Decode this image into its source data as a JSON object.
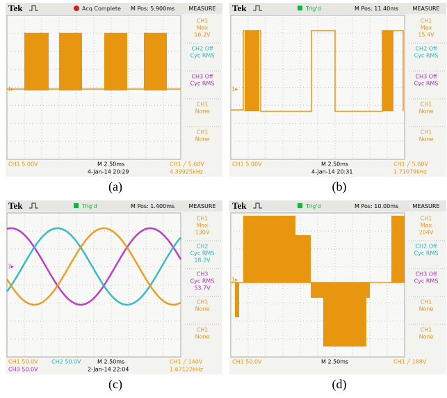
{
  "panels": [
    {
      "caption": "(a)",
      "brand": "Tek",
      "status": "Acq Complete",
      "status_color": "#cc2222",
      "mpos": "M Pos: 5.900ms",
      "measure_title": "MEASURE",
      "measures": [
        {
          "lines": [
            "CH1",
            "Max",
            "16.2V"
          ],
          "color": "#e8950f"
        },
        {
          "lines": [
            "CH2 Off",
            "Cyc RMS"
          ],
          "color": "#22b5c0"
        },
        {
          "lines": [
            "CH3 Off",
            "Cyc RMS"
          ],
          "color": "#b02cc0"
        },
        {
          "lines": [
            "CH1",
            "None"
          ],
          "color": "#e8950f"
        },
        {
          "lines": [
            "CH1",
            "None"
          ],
          "color": "#e8950f"
        }
      ],
      "marker": {
        "text": "1▸",
        "color": "#e8950f"
      },
      "channels": [
        {
          "text": "CH1  5.00V",
          "color": "#e8950f"
        }
      ],
      "timebase": "M 2.50ms",
      "date": "4-Jan-14 20:29",
      "trigger": "CH1 ╱ 5.60V",
      "frequency": "4.39925kHz"
    },
    {
      "caption": "(b)",
      "brand": "Tek",
      "status": "Trig'd",
      "status_color": "#22aa44",
      "mpos": "M Pos: 11.40ms",
      "measure_title": "MEASURE",
      "measures": [
        {
          "lines": [
            "CH1",
            "Max",
            "15.4V"
          ],
          "color": "#e8950f"
        },
        {
          "lines": [
            "CH2 Off",
            "Cyc RMS"
          ],
          "color": "#22b5c0"
        },
        {
          "lines": [
            "CH3 Off",
            "Cyc RMS"
          ],
          "color": "#b02cc0"
        },
        {
          "lines": [
            "CH1",
            "None"
          ],
          "color": "#e8950f"
        },
        {
          "lines": [
            "CH1",
            "None"
          ],
          "color": "#e8950f"
        }
      ],
      "marker": {
        "text": "1▸",
        "color": "#e8950f"
      },
      "channels": [
        {
          "text": "CH1  5.00V",
          "color": "#e8950f"
        }
      ],
      "timebase": "M 2.50ms",
      "date": "4-Jan-14 20:31",
      "trigger": "CH1 ╱ 5.60V",
      "frequency": "1.71079kHz"
    },
    {
      "caption": "(c)",
      "brand": "Tek",
      "status": "Trig'd",
      "status_color": "#22aa44",
      "mpos": "M Pos: 1.400ms",
      "measure_title": "MEASURE",
      "measures": [
        {
          "lines": [
            "CH1",
            "Max",
            "130V"
          ],
          "color": "#e8950f"
        },
        {
          "lines": [
            "CH2",
            "Cyc RMS",
            "18.2V"
          ],
          "color": "#22b5c0"
        },
        {
          "lines": [
            "CH3",
            "Cyc RMS",
            "53.7V"
          ],
          "color": "#b02cc0"
        },
        {
          "lines": [
            "CH1",
            "None"
          ],
          "color": "#e8950f"
        },
        {
          "lines": [
            "CH1",
            "None"
          ],
          "color": "#e8950f"
        }
      ],
      "marker": {
        "text": "3▸",
        "color": "#b02cc0"
      },
      "channels": [
        {
          "text": "CH1  50.0V",
          "color": "#e8950f"
        },
        {
          "text": "CH2  50.0V",
          "color": "#22b5c0"
        },
        {
          "text": "CH3  50.0V",
          "color": "#b02cc0"
        }
      ],
      "timebase": "M 2.50ms",
      "date": "2-Jan-14 22:04",
      "trigger": "CH1 ╱ 140V",
      "frequency": "1.67122kHz"
    },
    {
      "caption": "(d)",
      "brand": "Tek",
      "status": "Trig'd",
      "status_color": "#22aa44",
      "mpos": "M Pos: 10.00ms",
      "measure_title": "MEASURE",
      "measures": [
        {
          "lines": [
            "CH1",
            "Max",
            "204V"
          ],
          "color": "#e8950f"
        },
        {
          "lines": [
            "CH2 Off",
            "Cyc RMS"
          ],
          "color": "#22b5c0"
        },
        {
          "lines": [
            "CH3 Off",
            "Cyc RMS"
          ],
          "color": "#b02cc0"
        },
        {
          "lines": [
            "CH1",
            "None"
          ],
          "color": "#e8950f"
        },
        {
          "lines": [
            "CH1",
            "None"
          ],
          "color": "#e8950f"
        }
      ],
      "marker": {
        "text": "1▸",
        "color": "#e8950f"
      },
      "channels": [
        {
          "text": "CH1  50.0V",
          "color": "#e8950f"
        }
      ],
      "timebase": "M 2.50ms",
      "trigger": "CH1 ╱ 188V"
    }
  ]
}
